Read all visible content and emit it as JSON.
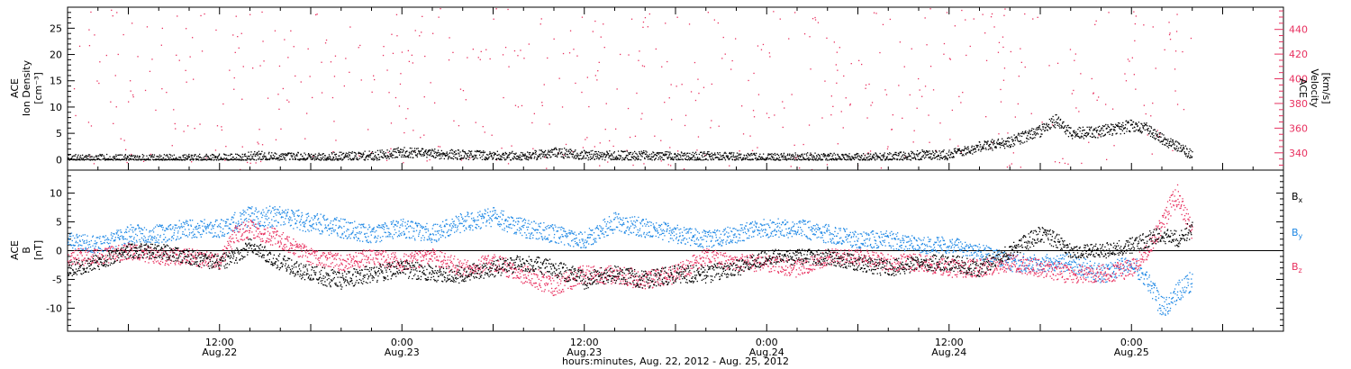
{
  "colors": {
    "black": "#000000",
    "pink": "#e8305f",
    "blue": "#1e88e5"
  },
  "x_axis": {
    "caption": "hours:minutes, Aug. 22, 2012 - Aug. 25, 2012",
    "ticks": [
      {
        "hours": 12,
        "time": "12:00",
        "date": "Aug.22"
      },
      {
        "hours": 24,
        "time": "0:00",
        "date": "Aug.23"
      },
      {
        "hours": 36,
        "time": "12:00",
        "date": "Aug.23"
      },
      {
        "hours": 48,
        "time": "0:00",
        "date": "Aug.24"
      },
      {
        "hours": 60,
        "time": "12:00",
        "date": "Aug.24"
      },
      {
        "hours": 72,
        "time": "0:00",
        "date": "Aug.25"
      }
    ]
  },
  "top_panel": {
    "left_label": [
      "ACE",
      "Ion Density",
      "[cm⁻³]"
    ],
    "right_label": [
      "ACE",
      "Velocity",
      "[km/s]"
    ]
  },
  "bottom_panel": {
    "left_label": [
      "ACE",
      "B",
      "[nT]"
    ],
    "legend": [
      {
        "label": "Bx",
        "main": "B",
        "sub": "x",
        "color": "#000000"
      },
      {
        "label": "By",
        "main": "B",
        "sub": "y",
        "color": "#1e88e5"
      },
      {
        "label": "Bz",
        "main": "B",
        "sub": "z",
        "color": "#e8305f"
      }
    ]
  },
  "chart_data": [
    {
      "type": "scatter",
      "title": "",
      "xlabel": "hours:minutes, Aug. 22, 2012 - Aug. 25, 2012",
      "x_unit": "hours since Aug. 22, 2012 00:00",
      "xlim": [
        2,
        82
      ],
      "left_axis": {
        "label": "ACE Ion Density [cm⁻³]",
        "ylim": [
          -2,
          29
        ],
        "ticks": [
          0,
          5,
          10,
          15,
          20,
          25
        ]
      },
      "right_axis": {
        "label": "ACE Velocity [km/s]",
        "ylim": [
          326,
          458
        ],
        "ticks": [
          340,
          360,
          380,
          400,
          420,
          440
        ]
      },
      "series": [
        {
          "name": "Ion Density",
          "axis": "left",
          "color": "#000000",
          "x": [
            2,
            6,
            10,
            13,
            14.5,
            16,
            18,
            20,
            22,
            24,
            26,
            28,
            30,
            32,
            34,
            36,
            38,
            40,
            42,
            44,
            46,
            48,
            50,
            52,
            54,
            56,
            58,
            60,
            62,
            64,
            66,
            67,
            68,
            70,
            72,
            73,
            74,
            76
          ],
          "y": [
            0.2,
            0.2,
            0.2,
            0.3,
            0.8,
            0.5,
            0.6,
            0.6,
            0.8,
            1.5,
            1.2,
            1.0,
            0.8,
            0.7,
            1.5,
            0.9,
            0.8,
            0.9,
            0.6,
            0.7,
            0.6,
            0.3,
            0.6,
            0.4,
            0.4,
            0.5,
            1.0,
            1.0,
            2.5,
            3.5,
            5.5,
            7.5,
            5.0,
            5.5,
            6.5,
            6.0,
            4.0,
            1.0
          ]
        },
        {
          "name": "Velocity",
          "axis": "right",
          "color": "#e8305f",
          "x": [
            2,
            4,
            6,
            8,
            10,
            12,
            13,
            14.5,
            16,
            17.5,
            19,
            20,
            22,
            24,
            26,
            28,
            30,
            32,
            34,
            36,
            38,
            40,
            42,
            44,
            46,
            48,
            50,
            52,
            53,
            54,
            56,
            58,
            60,
            62,
            64,
            66,
            68,
            70,
            72,
            74,
            76
          ],
          "y": [
            380,
            390,
            390,
            385,
            380,
            375,
            382,
            410,
            418,
            428,
            405,
            405,
            410,
            410,
            415,
            420,
            410,
            420,
            410,
            400,
            430,
            420,
            410,
            405,
            400,
            420,
            410,
            400,
            390,
            375,
            365,
            360,
            355,
            358,
            380,
            410,
            390,
            385,
            410,
            408,
            410
          ]
        }
      ]
    },
    {
      "type": "scatter",
      "title": "",
      "xlabel": "hours:minutes, Aug. 22, 2012 - Aug. 25, 2012",
      "x_unit": "hours since Aug. 22, 2012 00:00",
      "xlim": [
        2,
        82
      ],
      "ylabel": "ACE B [nT]",
      "ylim": [
        -14,
        14
      ],
      "yticks": [
        -10,
        -5,
        0,
        5,
        10
      ],
      "series": [
        {
          "name": "Bx",
          "color": "#000000",
          "x": [
            2,
            4,
            6,
            8,
            10,
            12,
            13,
            14,
            16,
            18,
            20,
            22,
            24,
            26,
            28,
            30,
            32,
            34,
            36,
            38,
            40,
            42,
            44,
            46,
            48,
            50,
            52,
            54,
            56,
            58,
            60,
            62,
            64,
            66,
            67,
            68,
            70,
            72,
            74,
            75,
            76
          ],
          "y": [
            -3,
            -2,
            0,
            0,
            -1,
            -2,
            -1,
            1,
            -2,
            -4,
            -5,
            -4,
            -3,
            -4,
            -4,
            -3,
            -2,
            -3,
            -5,
            -4,
            -5,
            -4,
            -4,
            -3,
            -1,
            -1,
            -1,
            -2,
            -3,
            -2,
            -2,
            -3,
            0,
            3,
            2,
            0,
            0,
            1,
            3,
            2,
            4
          ]
        },
        {
          "name": "By",
          "color": "#1e88e5",
          "x": [
            2,
            4,
            6,
            8,
            10,
            12,
            13,
            14,
            16,
            18,
            20,
            22,
            24,
            26,
            28,
            30,
            32,
            34,
            36,
            38,
            40,
            42,
            44,
            46,
            48,
            50,
            52,
            54,
            56,
            58,
            60,
            62,
            64,
            66,
            68,
            70,
            72,
            73,
            74,
            75,
            76
          ],
          "y": [
            2,
            1,
            3,
            3,
            4,
            4,
            5,
            6,
            6,
            5,
            4,
            3,
            4,
            3,
            5,
            6,
            4,
            3,
            2,
            5,
            4,
            3,
            2,
            3,
            4,
            4,
            3,
            2,
            2,
            1,
            1,
            0,
            -2,
            -2,
            -2,
            -4,
            -2,
            -5,
            -10,
            -7,
            -5
          ]
        },
        {
          "name": "Bz",
          "color": "#e8305f",
          "x": [
            2,
            4,
            6,
            8,
            10,
            12,
            13,
            14,
            16,
            18,
            20,
            22,
            24,
            26,
            28,
            30,
            32,
            34,
            36,
            38,
            40,
            42,
            44,
            46,
            48,
            50,
            52,
            54,
            56,
            58,
            60,
            62,
            64,
            66,
            68,
            70,
            72,
            73,
            74,
            75,
            76
          ],
          "y": [
            -1,
            -1,
            0,
            -1,
            -1,
            -2,
            3,
            4,
            2,
            -1,
            -2,
            -1,
            -2,
            -1,
            -3,
            -2,
            -4,
            -6,
            -4,
            -4,
            -5,
            -4,
            -1,
            -2,
            -2,
            -3,
            -1,
            -1,
            -2,
            -2,
            -3,
            -3,
            -2,
            -3,
            -4,
            -4,
            -3,
            0,
            5,
            10,
            3
          ]
        }
      ]
    }
  ]
}
